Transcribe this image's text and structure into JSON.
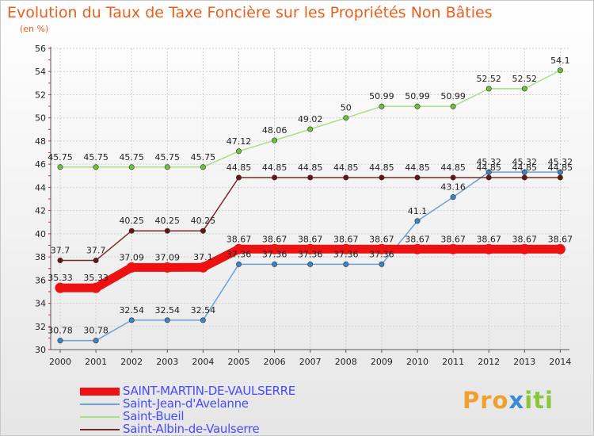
{
  "title": "Evolution du Taux de Taxe Foncière sur les Propriétés Non Bâties",
  "unit_label": "(en %)",
  "logo": {
    "part1": "Pro",
    "part2": "x",
    "part3": "iti"
  },
  "chart_data": {
    "type": "line",
    "title": "Evolution du Taux de Taxe Foncière sur les Propriétés Non Bâties",
    "ylabel": "(en %)",
    "xlabel": "",
    "ylim": [
      30,
      56
    ],
    "yticks": [
      30,
      32,
      34,
      36,
      38,
      40,
      42,
      44,
      46,
      48,
      50,
      52,
      54,
      56
    ],
    "x": [
      2000,
      2001,
      2002,
      2003,
      2004,
      2005,
      2006,
      2007,
      2008,
      2009,
      2010,
      2011,
      2012,
      2013,
      2014
    ],
    "grid": true,
    "legend_position": "bottom-left",
    "series": [
      {
        "name": "SAINT-MARTIN-DE-VAULSERRE",
        "color": "#ee1111",
        "marker": "#ee1111",
        "width": 11,
        "values": [
          35.33,
          35.33,
          37.09,
          37.09,
          37.1,
          38.67,
          38.67,
          38.67,
          38.67,
          38.67,
          38.67,
          38.67,
          38.67,
          38.67,
          38.67
        ],
        "labels": [
          "35.33",
          "35.33",
          "37.09",
          "37.09",
          "37.1",
          "38.67",
          "38.67",
          "38.67",
          "38.67",
          "38.67",
          "38.67",
          "38.67",
          "38.67",
          "38.67",
          "38.67"
        ]
      },
      {
        "name": "Saint-Jean-d'Avelanne",
        "color": "#6aa0d8",
        "marker": "#3a84c8",
        "width": 1.5,
        "values": [
          30.78,
          30.78,
          32.54,
          32.54,
          32.54,
          37.36,
          37.36,
          37.36,
          37.36,
          37.36,
          41.1,
          43.16,
          45.32,
          45.32,
          45.32
        ],
        "labels": [
          "30.78",
          "30.78",
          "32.54",
          "32.54",
          "32.54",
          "37.36",
          "37.36",
          "37.36",
          "37.36",
          "37.36",
          "41.1",
          "43.16",
          "45.32",
          "45.32",
          "45.32"
        ]
      },
      {
        "name": "Saint-Bueil",
        "color": "#a8e080",
        "marker": "#6cc03c",
        "width": 1.5,
        "values": [
          45.75,
          45.75,
          45.75,
          45.75,
          45.75,
          47.12,
          48.06,
          49.02,
          50,
          50.99,
          50.99,
          50.99,
          52.52,
          52.52,
          54.1
        ],
        "labels": [
          "45.75",
          "45.75",
          "45.75",
          "45.75",
          "45.75",
          "47.12",
          "48.06",
          "49.02",
          "50",
          "50.99",
          "50.99",
          "50.99",
          "52.52",
          "52.52",
          "54.1"
        ]
      },
      {
        "name": "Saint-Albin-de-Vaulserre",
        "color": "#7a2a2a",
        "marker": "#6a1414",
        "width": 1.5,
        "values": [
          37.7,
          37.7,
          40.25,
          40.25,
          40.25,
          44.85,
          44.85,
          44.85,
          44.85,
          44.85,
          44.85,
          44.85,
          44.85,
          44.85,
          44.85
        ],
        "labels": [
          "37.7",
          "37.7",
          "40.25",
          "40.25",
          "40.25",
          "44.85",
          "44.85",
          "44.85",
          "44.85",
          "44.85",
          "44.85",
          "44.85",
          "44.85",
          "44.85",
          "44.85"
        ]
      }
    ]
  }
}
